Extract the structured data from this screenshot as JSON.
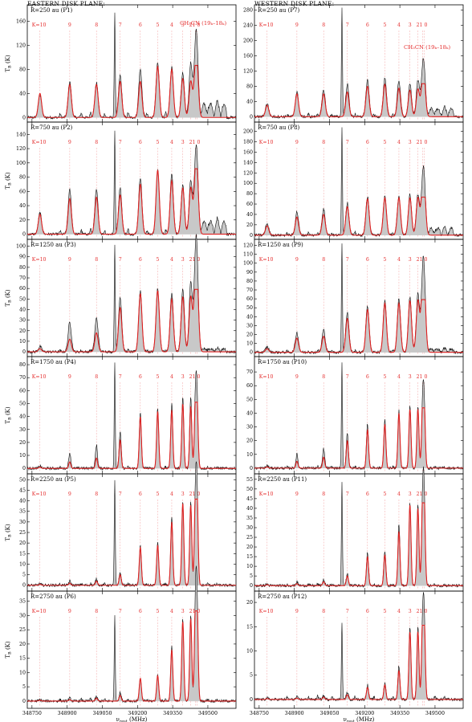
{
  "headers": {
    "left": "EASTERN DISK PLANE:",
    "right": "WESTERN DISK PLANE:"
  },
  "molecule_label": "CH₃CN (19ₖ–18ₖ)",
  "kline_prefix": "K=",
  "x_axis": {
    "ticks": [
      348750,
      348900,
      349050,
      349200,
      349350,
      349500
    ],
    "tick_labels": [
      "348750",
      "348900",
      "349050",
      "349200",
      "349350",
      "349500"
    ],
    "range": [
      348730,
      349620
    ]
  },
  "xlabel": {
    "nu": "ν",
    "sub": "rest",
    "unit": "(MHz)"
  },
  "ylabel": {
    "t": "T",
    "sub": "B",
    "unit": "(K)"
  },
  "k_lines": [
    {
      "k": "10",
      "freq": 348784
    },
    {
      "k": "9",
      "freq": 348911
    },
    {
      "k": "8",
      "freq": 349025
    },
    {
      "k": "7",
      "freq": 349126
    },
    {
      "k": "6",
      "freq": 349212
    },
    {
      "k": "5",
      "freq": 349286
    },
    {
      "k": "4",
      "freq": 349346
    },
    {
      "k": "3",
      "freq": 349393
    },
    {
      "k": "2",
      "freq": 349427
    },
    {
      "k": "1",
      "freq": 349447
    },
    {
      "k": "0",
      "freq": 349454
    }
  ],
  "chart_data": [
    {
      "type": "line",
      "panel": "P1",
      "label": "R=250 au (P1)",
      "column": "east",
      "ylim": [
        -5,
        185
      ],
      "yticks": [
        0,
        40,
        80,
        120,
        160
      ],
      "show_molecule": true,
      "peak": [
        40,
        55,
        55,
        60,
        60,
        85,
        80,
        65,
        60,
        62,
        62
      ],
      "obs_peak": [
        38,
        60,
        58,
        70,
        80,
        90,
        85,
        75,
        90,
        85,
        80
      ],
      "sharp": 175,
      "wide": true
    },
    {
      "type": "line",
      "panel": "P2",
      "label": "R=750 au (P2)",
      "column": "east",
      "ylim": [
        -5,
        155
      ],
      "yticks": [
        0,
        20,
        40,
        60,
        80,
        100,
        120,
        140
      ],
      "show_molecule": false,
      "peak": [
        28,
        50,
        52,
        55,
        70,
        90,
        75,
        65,
        65,
        62,
        62
      ],
      "obs_peak": [
        30,
        62,
        62,
        65,
        80,
        90,
        85,
        70,
        75,
        72,
        70
      ],
      "sharp": 145,
      "wide": true
    },
    {
      "type": "line",
      "panel": "P3",
      "label": "R=1250 au (P3)",
      "column": "east",
      "ylim": [
        -3,
        105
      ],
      "yticks": [
        0,
        10,
        20,
        30,
        40,
        50,
        60,
        70,
        80,
        90,
        100
      ],
      "show_molecule": false,
      "peak": [
        3,
        12,
        18,
        42,
        55,
        58,
        50,
        52,
        52,
        52,
        52
      ],
      "obs_peak": [
        5,
        28,
        32,
        52,
        58,
        60,
        55,
        60,
        65,
        65,
        60
      ],
      "sharp": 102,
      "wide": true
    },
    {
      "type": "line",
      "panel": "P4",
      "label": "R=1750 au (P4)",
      "column": "east",
      "ylim": [
        -3,
        85
      ],
      "yticks": [
        0,
        10,
        20,
        30,
        40,
        50,
        60,
        70,
        80
      ],
      "show_molecule": false,
      "peak": [
        1,
        5,
        8,
        22,
        40,
        44,
        45,
        50,
        48,
        48,
        47
      ],
      "obs_peak": [
        2,
        12,
        18,
        28,
        43,
        47,
        50,
        55,
        55,
        52,
        50
      ],
      "sharp": 82,
      "wide": false
    },
    {
      "type": "line",
      "panel": "P5",
      "label": "R=2250 au (P5)",
      "column": "east",
      "ylim": [
        -2,
        52
      ],
      "yticks": [
        0,
        5,
        10,
        15,
        20,
        25,
        30,
        35,
        40,
        45,
        50
      ],
      "show_molecule": false,
      "peak": [
        0.5,
        1,
        2,
        5,
        18,
        19,
        30,
        39,
        38,
        40,
        39
      ],
      "obs_peak": [
        0.8,
        2,
        3,
        6,
        19,
        20,
        32,
        40,
        40,
        40,
        40
      ],
      "sharp": 50,
      "wide": false
    },
    {
      "type": "line",
      "panel": "P6",
      "label": "R=2750 au (P6)",
      "column": "east",
      "ylim": [
        -2,
        38
      ],
      "yticks": [
        0,
        5,
        10,
        15,
        20,
        25,
        30,
        35
      ],
      "show_molecule": false,
      "peak": [
        0.3,
        0.5,
        1,
        2,
        8,
        9,
        18,
        28,
        29,
        31,
        31
      ],
      "obs_peak": [
        0.5,
        1,
        1.5,
        3,
        8,
        9,
        19,
        29,
        30,
        32,
        32
      ],
      "sharp": 30,
      "wide": false
    },
    {
      "type": "line",
      "panel": "P7",
      "label": "R=250 au (P7)",
      "column": "west",
      "ylim": [
        -10,
        290
      ],
      "yticks": [
        0,
        40,
        80,
        120,
        160,
        200,
        240,
        280
      ],
      "show_molecule": true,
      "peak": [
        30,
        60,
        60,
        65,
        80,
        85,
        75,
        70,
        72,
        70,
        70
      ],
      "obs_peak": [
        35,
        65,
        70,
        85,
        95,
        100,
        95,
        85,
        95,
        90,
        85
      ],
      "sharp": 285,
      "wide": true
    },
    {
      "type": "line",
      "panel": "P8",
      "label": "R=750 au (P8)",
      "column": "west",
      "ylim": [
        -5,
        215
      ],
      "yticks": [
        0,
        20,
        40,
        60,
        80,
        100,
        120,
        140,
        160,
        180,
        200
      ],
      "show_molecule": false,
      "peak": [
        18,
        35,
        40,
        55,
        70,
        72,
        72,
        72,
        72,
        70,
        70
      ],
      "obs_peak": [
        22,
        45,
        50,
        62,
        75,
        75,
        75,
        78,
        78,
        75,
        75
      ],
      "sharp": 210,
      "wide": true
    },
    {
      "type": "line",
      "panel": "P9",
      "label": "R=1250 au (P9)",
      "column": "west",
      "ylim": [
        -3,
        125
      ],
      "yticks": [
        0,
        10,
        20,
        30,
        40,
        50,
        60,
        70,
        80,
        90,
        100,
        110,
        120
      ],
      "show_molecule": false,
      "peak": [
        4,
        16,
        18,
        38,
        48,
        55,
        55,
        58,
        58,
        58,
        58
      ],
      "obs_peak": [
        6,
        22,
        25,
        45,
        52,
        58,
        60,
        62,
        65,
        62,
        60
      ],
      "sharp": 123,
      "wide": true
    },
    {
      "type": "line",
      "panel": "P10",
      "label": "R=1750 au (P10)",
      "column": "west",
      "ylim": [
        -3,
        80
      ],
      "yticks": [
        0,
        10,
        20,
        30,
        40,
        50,
        60,
        70
      ],
      "show_molecule": false,
      "peak": [
        1,
        5,
        8,
        20,
        28,
        32,
        40,
        43,
        43,
        42,
        42
      ],
      "obs_peak": [
        2,
        10,
        14,
        26,
        32,
        35,
        42,
        45,
        45,
        44,
        43
      ],
      "sharp": 77,
      "wide": false
    },
    {
      "type": "line",
      "panel": "P11",
      "label": "R=2250 au (P11)",
      "column": "west",
      "ylim": [
        -2,
        57
      ],
      "yticks": [
        0,
        5,
        10,
        15,
        20,
        25,
        30,
        35,
        40,
        45,
        50,
        55
      ],
      "show_molecule": false,
      "peak": [
        0.5,
        1,
        2,
        5,
        15,
        16,
        28,
        42,
        40,
        40,
        39
      ],
      "obs_peak": [
        0.8,
        2,
        3,
        6,
        17,
        18,
        32,
        43,
        42,
        42,
        41
      ],
      "sharp": 54,
      "wide": false
    },
    {
      "type": "line",
      "panel": "P12",
      "label": "R=2750 au (P12)",
      "column": "west",
      "ylim": [
        -1.5,
        22
      ],
      "yticks": [
        0,
        5,
        10,
        15,
        20
      ],
      "show_molecule": false,
      "peak": [
        0.2,
        0.3,
        0.5,
        1,
        2.5,
        3,
        6,
        14,
        14,
        15,
        15
      ],
      "obs_peak": [
        0.3,
        0.5,
        0.8,
        1.5,
        3,
        3.5,
        7,
        15,
        15,
        15,
        15
      ],
      "sharp": 16,
      "wide": false
    }
  ]
}
